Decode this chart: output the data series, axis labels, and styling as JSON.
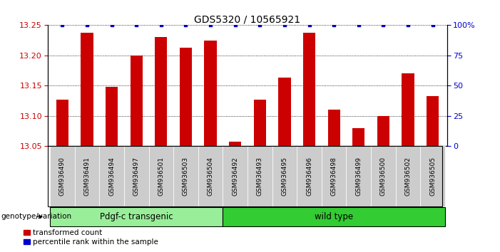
{
  "title": "GDS5320 / 10565921",
  "categories": [
    "GSM936490",
    "GSM936491",
    "GSM936494",
    "GSM936497",
    "GSM936501",
    "GSM936503",
    "GSM936504",
    "GSM936492",
    "GSM936493",
    "GSM936495",
    "GSM936496",
    "GSM936498",
    "GSM936499",
    "GSM936500",
    "GSM936502",
    "GSM936505"
  ],
  "red_values": [
    13.127,
    13.237,
    13.148,
    13.2,
    13.23,
    13.213,
    13.225,
    13.057,
    13.127,
    13.163,
    13.237,
    13.11,
    13.08,
    13.1,
    13.17,
    13.133
  ],
  "blue_values": [
    100,
    100,
    100,
    100,
    100,
    100,
    100,
    100,
    100,
    100,
    100,
    100,
    100,
    100,
    100,
    100
  ],
  "ylim_left": [
    13.05,
    13.25
  ],
  "ylim_right": [
    0,
    100
  ],
  "yticks_left": [
    13.05,
    13.1,
    13.15,
    13.2,
    13.25
  ],
  "yticks_right": [
    0,
    25,
    50,
    75,
    100
  ],
  "group1_label": "Pdgf-c transgenic",
  "group2_label": "wild type",
  "group1_count": 7,
  "group2_count": 9,
  "bar_color_red": "#cc0000",
  "bar_color_blue": "#0000cc",
  "background_color": "#ffffff",
  "plot_bg_color": "#ffffff",
  "grid_color": "#000000",
  "tick_label_color_left": "#cc0000",
  "tick_label_color_right": "#0000cc",
  "legend_red_label": "transformed count",
  "legend_blue_label": "percentile rank within the sample",
  "genotype_label": "genotype/variation",
  "group1_color": "#99ee99",
  "group2_color": "#33cc33",
  "xtick_bg_color": "#cccccc",
  "bar_width": 0.5
}
